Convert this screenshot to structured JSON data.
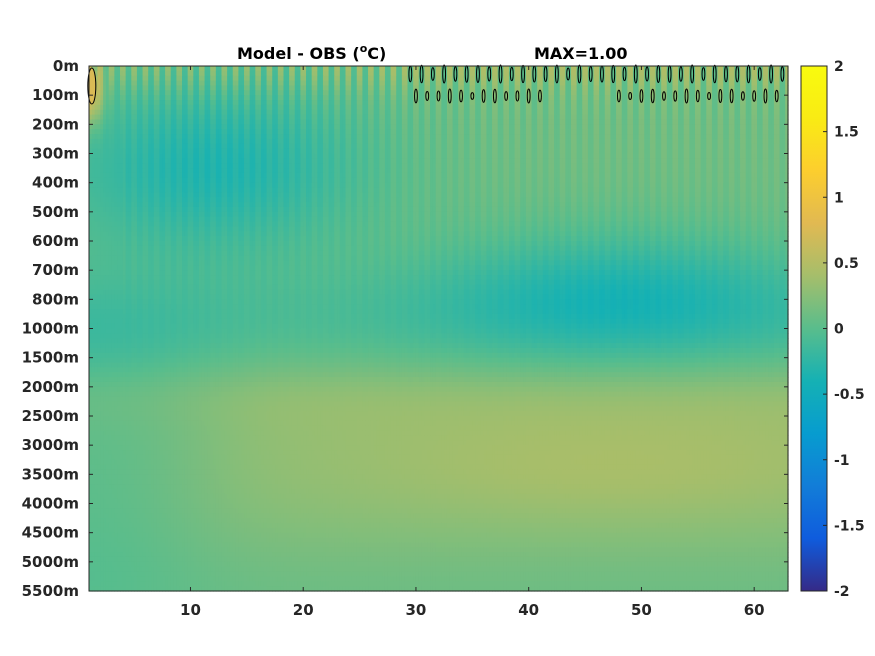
{
  "chart_data": {
    "type": "heatmap",
    "title": "Model - OBS (°C)",
    "title_parts": {
      "prefix": "Model - OBS (",
      "superscript": "o",
      "suffix": "C)"
    },
    "max_label": "MAX=1.00",
    "xlabel": "",
    "ylabel": "",
    "xlim": [
      1,
      63
    ],
    "x_ticks": [
      10,
      20,
      30,
      40,
      50,
      60
    ],
    "x_tick_labels": [
      "10",
      "20",
      "30",
      "40",
      "50",
      "60"
    ],
    "y_levels": [
      "0m",
      "100m",
      "200m",
      "300m",
      "400m",
      "500m",
      "600m",
      "700m",
      "800m",
      "1000m",
      "1500m",
      "2000m",
      "2500m",
      "3000m",
      "3500m",
      "4000m",
      "4500m",
      "5000m",
      "5500m"
    ],
    "colorbar": {
      "min": -2,
      "max": 2,
      "ticks": [
        2,
        1.5,
        1,
        0.5,
        0,
        -0.5,
        -1,
        -1.5,
        -2
      ],
      "tick_labels": [
        "2",
        "1.5",
        "1",
        "0.5",
        "0",
        "-0.5",
        "-1",
        "-1.5",
        "-2"
      ],
      "colormap": "parula"
    },
    "field_summary": [
      {
        "depth": "0m",
        "x": [
          1,
          63
        ],
        "value": 0.2,
        "note": "oscillating stripes"
      },
      {
        "depth": "100m",
        "x": [
          1,
          2
        ],
        "value": 0.8
      },
      {
        "depth": "200m-500m",
        "x": [
          3,
          25
        ],
        "value": -0.35
      },
      {
        "depth": "700m-800m",
        "x": [
          40,
          63
        ],
        "value": -0.35
      },
      {
        "depth": "1000m",
        "x": [
          1,
          63
        ],
        "value": -0.15
      },
      {
        "depth": "2000m",
        "x": [
          1,
          63
        ],
        "value": 0.15
      },
      {
        "depth": "3000m-3500m",
        "x": [
          20,
          63
        ],
        "value": 0.3
      },
      {
        "depth": "5000m-5500m",
        "x": [
          1,
          63
        ],
        "value": 0.05
      }
    ],
    "grid": false,
    "legend": "colorbar right"
  }
}
